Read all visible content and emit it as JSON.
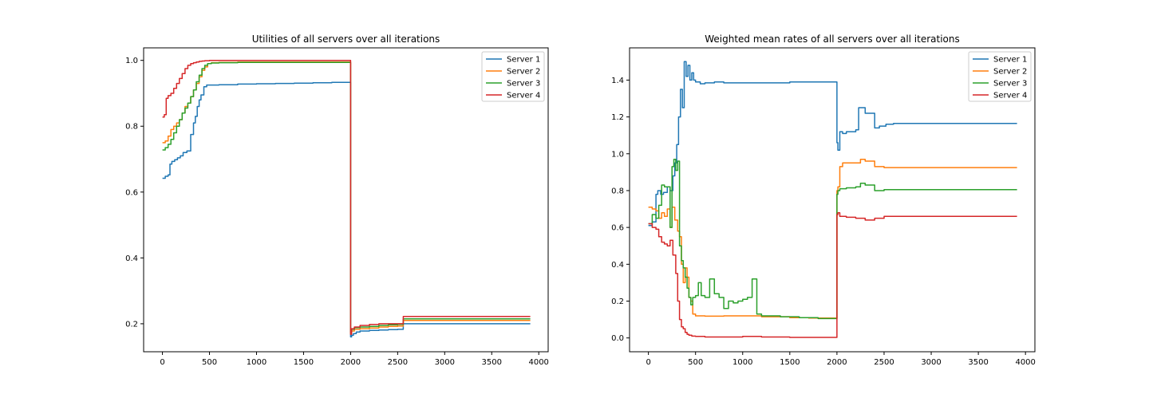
{
  "colors": {
    "Server 1": "#1f77b4",
    "Server 2": "#ff7f0e",
    "Server 3": "#2ca02c",
    "Server 4": "#d62728"
  },
  "chart_data": [
    {
      "type": "line",
      "title": "Utilities of all servers over all iterations",
      "xlim": [
        -200,
        4100
      ],
      "ylim": [
        0.115,
        1.038
      ],
      "xticks": [
        0,
        500,
        1000,
        1500,
        2000,
        2500,
        3000,
        3500,
        4000
      ],
      "yticks": [
        0.2,
        0.4,
        0.6,
        0.8,
        1.0
      ],
      "ytick_labels": [
        "0.2",
        "0.4",
        "0.6",
        "0.8",
        "1.0"
      ],
      "legend_position": "top-right",
      "series": [
        {
          "name": "Server 1",
          "step": true,
          "x": [
            0,
            30,
            60,
            80,
            100,
            130,
            160,
            190,
            220,
            260,
            300,
            330,
            350,
            370,
            390,
            410,
            440,
            470,
            600,
            800,
            1000,
            1200,
            1400,
            1600,
            1800,
            1995,
            2000,
            2010,
            2030,
            2060,
            2100,
            2200,
            2300,
            2400,
            2500,
            2560,
            3000,
            3500,
            3910
          ],
          "y": [
            0.642,
            0.648,
            0.652,
            0.685,
            0.693,
            0.698,
            0.704,
            0.71,
            0.72,
            0.725,
            0.775,
            0.81,
            0.83,
            0.86,
            0.88,
            0.895,
            0.92,
            0.925,
            0.926,
            0.928,
            0.929,
            0.93,
            0.931,
            0.932,
            0.933,
            0.933,
            0.16,
            0.165,
            0.17,
            0.175,
            0.178,
            0.18,
            0.181,
            0.182,
            0.183,
            0.2,
            0.2,
            0.2,
            0.2
          ]
        },
        {
          "name": "Server 2",
          "step": true,
          "x": [
            0,
            30,
            60,
            90,
            120,
            150,
            180,
            210,
            240,
            270,
            300,
            330,
            360,
            390,
            420,
            450,
            480,
            520,
            600,
            800,
            1000,
            1500,
            1995,
            2000,
            2010,
            2040,
            2100,
            2200,
            2300,
            2400,
            2500,
            2560,
            3000,
            3910
          ],
          "y": [
            0.75,
            0.755,
            0.77,
            0.79,
            0.8,
            0.81,
            0.82,
            0.84,
            0.86,
            0.87,
            0.89,
            0.91,
            0.93,
            0.95,
            0.97,
            0.98,
            0.99,
            0.993,
            0.994,
            0.995,
            0.995,
            0.995,
            0.995,
            0.17,
            0.178,
            0.183,
            0.185,
            0.187,
            0.19,
            0.192,
            0.193,
            0.21,
            0.21,
            0.21
          ]
        },
        {
          "name": "Server 3",
          "step": true,
          "x": [
            0,
            30,
            60,
            90,
            120,
            150,
            180,
            210,
            240,
            270,
            300,
            330,
            360,
            390,
            420,
            450,
            480,
            520,
            600,
            800,
            1000,
            1500,
            1995,
            2000,
            2010,
            2040,
            2100,
            2200,
            2300,
            2400,
            2500,
            2560,
            3000,
            3910
          ],
          "y": [
            0.728,
            0.735,
            0.745,
            0.76,
            0.78,
            0.8,
            0.82,
            0.84,
            0.855,
            0.87,
            0.89,
            0.91,
            0.935,
            0.955,
            0.975,
            0.985,
            0.99,
            0.992,
            0.993,
            0.994,
            0.994,
            0.994,
            0.994,
            0.175,
            0.183,
            0.188,
            0.19,
            0.192,
            0.195,
            0.197,
            0.198,
            0.215,
            0.215,
            0.215
          ]
        },
        {
          "name": "Server 4",
          "step": true,
          "x": [
            0,
            20,
            40,
            60,
            90,
            120,
            150,
            180,
            210,
            240,
            270,
            300,
            330,
            360,
            390,
            420,
            450,
            500,
            600,
            800,
            1000,
            1500,
            1995,
            2000,
            2010,
            2040,
            2100,
            2200,
            2300,
            2400,
            2500,
            2560,
            3000,
            3910
          ],
          "y": [
            0.828,
            0.835,
            0.885,
            0.893,
            0.9,
            0.915,
            0.93,
            0.945,
            0.96,
            0.975,
            0.985,
            0.99,
            0.993,
            0.995,
            0.997,
            0.998,
            0.999,
            1.0,
            1.0,
            1.0,
            1.0,
            1.0,
            1.0,
            0.168,
            0.185,
            0.19,
            0.195,
            0.198,
            0.2,
            0.2,
            0.2,
            0.222,
            0.222,
            0.222
          ]
        }
      ]
    },
    {
      "type": "line",
      "title": "Weighted mean rates of all servers over all iterations",
      "xlim": [
        -200,
        4100
      ],
      "ylim": [
        -0.075,
        1.575
      ],
      "xticks": [
        0,
        500,
        1000,
        1500,
        2000,
        2500,
        3000,
        3500,
        4000
      ],
      "yticks": [
        0.0,
        0.2,
        0.4,
        0.6,
        0.8,
        1.0,
        1.2,
        1.4
      ],
      "ytick_labels": [
        "0.0",
        "0.2",
        "0.4",
        "0.6",
        "0.8",
        "1.0",
        "1.2",
        "1.4"
      ],
      "legend_position": "top-right",
      "series": [
        {
          "name": "Server 1",
          "step": true,
          "x": [
            0,
            40,
            80,
            100,
            130,
            160,
            200,
            230,
            260,
            280,
            300,
            320,
            340,
            360,
            380,
            400,
            420,
            440,
            460,
            480,
            500,
            550,
            600,
            700,
            800,
            1000,
            1500,
            1995,
            2000,
            2010,
            2030,
            2060,
            2100,
            2200,
            2230,
            2300,
            2400,
            2450,
            2520,
            2600,
            3000,
            3500,
            3910
          ],
          "y": [
            0.61,
            0.63,
            0.78,
            0.8,
            0.78,
            0.79,
            0.82,
            0.8,
            0.88,
            0.95,
            1.05,
            1.2,
            1.35,
            1.25,
            1.5,
            1.42,
            1.48,
            1.4,
            1.44,
            1.4,
            1.39,
            1.38,
            1.385,
            1.39,
            1.385,
            1.385,
            1.39,
            1.39,
            1.06,
            1.02,
            1.12,
            1.11,
            1.12,
            1.13,
            1.25,
            1.22,
            1.14,
            1.15,
            1.16,
            1.165,
            1.165,
            1.165,
            1.165
          ]
        },
        {
          "name": "Server 2",
          "step": true,
          "x": [
            0,
            40,
            80,
            110,
            140,
            170,
            200,
            230,
            250,
            280,
            310,
            330,
            350,
            370,
            390,
            410,
            430,
            450,
            470,
            500,
            600,
            800,
            1000,
            1200,
            1500,
            1700,
            1995,
            2000,
            2010,
            2030,
            2060,
            2100,
            2200,
            2250,
            2300,
            2400,
            2500,
            3000,
            3910
          ],
          "y": [
            0.71,
            0.7,
            0.69,
            0.65,
            0.68,
            0.66,
            0.7,
            0.6,
            0.71,
            0.64,
            0.58,
            0.55,
            0.4,
            0.3,
            0.38,
            0.33,
            0.22,
            0.2,
            0.13,
            0.12,
            0.118,
            0.12,
            0.12,
            0.115,
            0.11,
            0.108,
            0.105,
            0.8,
            0.82,
            0.93,
            0.95,
            0.95,
            0.95,
            0.97,
            0.96,
            0.93,
            0.925,
            0.925,
            0.925
          ]
        },
        {
          "name": "Server 3",
          "step": true,
          "x": [
            0,
            40,
            80,
            110,
            140,
            170,
            200,
            230,
            250,
            270,
            290,
            310,
            330,
            350,
            370,
            390,
            410,
            430,
            450,
            470,
            500,
            530,
            560,
            600,
            650,
            700,
            750,
            800,
            850,
            900,
            950,
            1000,
            1050,
            1100,
            1150,
            1200,
            1400,
            1600,
            1800,
            1995,
            2000,
            2010,
            2030,
            2100,
            2200,
            2250,
            2300,
            2400,
            2500,
            3000,
            3910
          ],
          "y": [
            0.62,
            0.67,
            0.65,
            0.72,
            0.83,
            0.82,
            0.82,
            0.6,
            0.93,
            0.97,
            0.91,
            0.96,
            0.5,
            0.42,
            0.38,
            0.33,
            0.27,
            0.22,
            0.18,
            0.22,
            0.23,
            0.3,
            0.23,
            0.22,
            0.32,
            0.24,
            0.22,
            0.16,
            0.2,
            0.19,
            0.2,
            0.21,
            0.22,
            0.32,
            0.13,
            0.12,
            0.115,
            0.11,
            0.105,
            0.105,
            0.78,
            0.8,
            0.81,
            0.815,
            0.82,
            0.84,
            0.83,
            0.8,
            0.805,
            0.805,
            0.805
          ]
        },
        {
          "name": "Server 4",
          "step": true,
          "x": [
            0,
            40,
            80,
            110,
            140,
            170,
            200,
            230,
            260,
            290,
            310,
            330,
            350,
            370,
            390,
            410,
            430,
            460,
            500,
            600,
            800,
            1000,
            1200,
            1500,
            1800,
            1995,
            2000,
            2010,
            2030,
            2100,
            2200,
            2300,
            2400,
            2500,
            3000,
            3910
          ],
          "y": [
            0.62,
            0.6,
            0.59,
            0.55,
            0.52,
            0.51,
            0.5,
            0.53,
            0.45,
            0.35,
            0.2,
            0.1,
            0.06,
            0.05,
            0.03,
            0.02,
            0.015,
            0.01,
            0.008,
            0.005,
            0.005,
            0.008,
            0.005,
            0.003,
            0.003,
            0.003,
            0.67,
            0.68,
            0.66,
            0.655,
            0.65,
            0.64,
            0.65,
            0.66,
            0.66,
            0.66
          ]
        }
      ]
    }
  ]
}
